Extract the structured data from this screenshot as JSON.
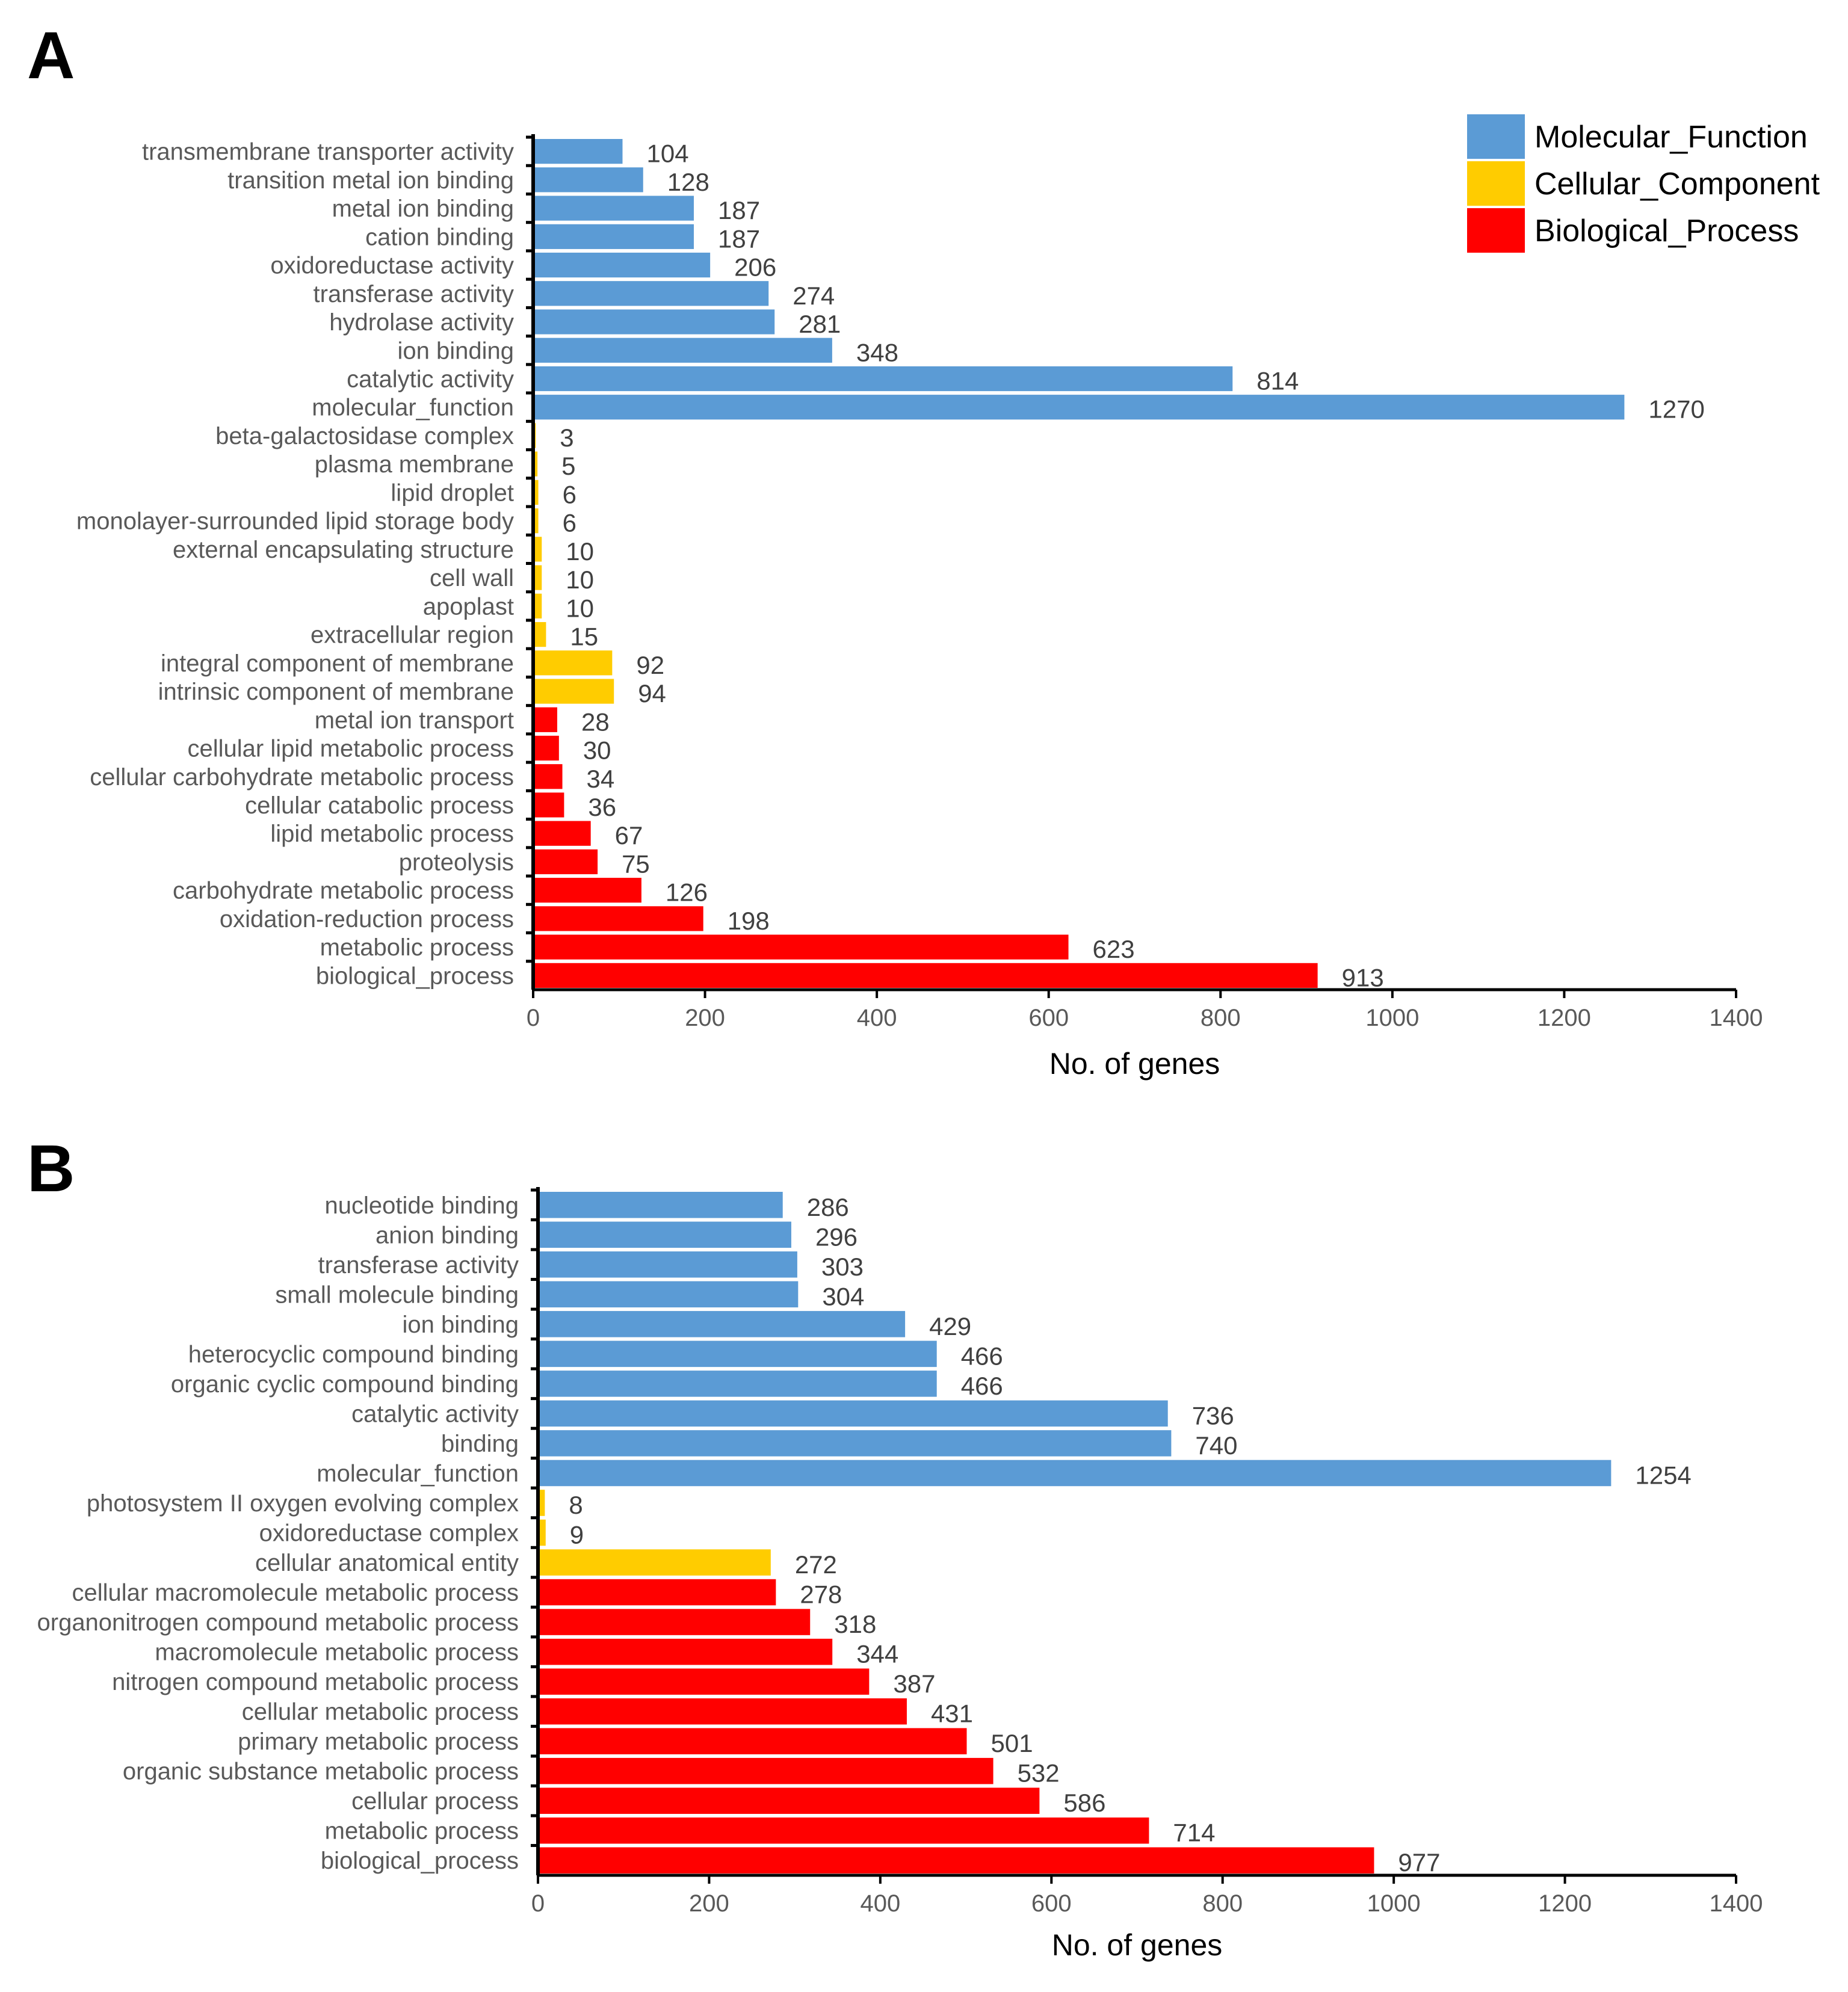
{
  "colors": {
    "Molecular_Function": "#5B9BD5",
    "Cellular_Component": "#FFCC00",
    "Biological_Process": "#FF0000"
  },
  "legend": {
    "position": "top-right",
    "entries": [
      "Molecular_Function",
      "Cellular_Component",
      "Biological_Process"
    ]
  },
  "chart_data": [
    {
      "panel": "A",
      "type": "bar",
      "orientation": "horizontal",
      "xlabel": "No. of genes",
      "xlim": [
        0,
        1400
      ],
      "xticks": [
        0,
        200,
        400,
        600,
        800,
        1000,
        1200,
        1400
      ],
      "categories": [
        "transmembrane transporter activity",
        "transition metal ion binding",
        "metal ion binding",
        "cation binding",
        "oxidoreductase activity",
        "transferase activity",
        "hydrolase activity",
        "ion binding",
        "catalytic activity",
        "molecular_function",
        "beta-galactosidase complex",
        "plasma membrane",
        "lipid droplet",
        "monolayer-surrounded lipid storage body",
        "external encapsulating structure",
        "cell wall",
        "apoplast",
        "extracellular region",
        "integral component of membrane",
        "intrinsic component of membrane",
        "metal ion transport",
        "cellular lipid metabolic process",
        "cellular carbohydrate metabolic process",
        "cellular catabolic process",
        "lipid metabolic process",
        "proteolysis",
        "carbohydrate metabolic process",
        "oxidation-reduction process",
        "metabolic process",
        "biological_process"
      ],
      "values": [
        104,
        128,
        187,
        187,
        206,
        274,
        281,
        348,
        814,
        1270,
        3,
        5,
        6,
        6,
        10,
        10,
        10,
        15,
        92,
        94,
        28,
        30,
        34,
        36,
        67,
        75,
        126,
        198,
        623,
        913
      ],
      "groups": [
        "Molecular_Function",
        "Molecular_Function",
        "Molecular_Function",
        "Molecular_Function",
        "Molecular_Function",
        "Molecular_Function",
        "Molecular_Function",
        "Molecular_Function",
        "Molecular_Function",
        "Molecular_Function",
        "Cellular_Component",
        "Cellular_Component",
        "Cellular_Component",
        "Cellular_Component",
        "Cellular_Component",
        "Cellular_Component",
        "Cellular_Component",
        "Cellular_Component",
        "Cellular_Component",
        "Cellular_Component",
        "Biological_Process",
        "Biological_Process",
        "Biological_Process",
        "Biological_Process",
        "Biological_Process",
        "Biological_Process",
        "Biological_Process",
        "Biological_Process",
        "Biological_Process",
        "Biological_Process"
      ]
    },
    {
      "panel": "B",
      "type": "bar",
      "orientation": "horizontal",
      "xlabel": "No. of genes",
      "xlim": [
        0,
        1400
      ],
      "xticks": [
        0,
        200,
        400,
        600,
        800,
        1000,
        1200,
        1400
      ],
      "categories": [
        "nucleotide binding",
        "anion binding",
        "transferase activity",
        "small molecule binding",
        "ion binding",
        "heterocyclic compound binding",
        "organic cyclic compound binding",
        "catalytic activity",
        "binding",
        "molecular_function",
        "photosystem II oxygen evolving complex",
        "oxidoreductase complex",
        "cellular anatomical entity",
        "cellular macromolecule metabolic process",
        "organonitrogen compound metabolic process",
        "macromolecule metabolic process",
        "nitrogen compound metabolic process",
        "cellular metabolic process",
        "primary metabolic process",
        "organic substance metabolic process",
        "cellular process",
        "metabolic process",
        "biological_process"
      ],
      "values": [
        286,
        296,
        303,
        304,
        429,
        466,
        466,
        736,
        740,
        1254,
        8,
        9,
        272,
        278,
        318,
        344,
        387,
        431,
        501,
        532,
        586,
        714,
        977
      ],
      "groups": [
        "Molecular_Function",
        "Molecular_Function",
        "Molecular_Function",
        "Molecular_Function",
        "Molecular_Function",
        "Molecular_Function",
        "Molecular_Function",
        "Molecular_Function",
        "Molecular_Function",
        "Molecular_Function",
        "Cellular_Component",
        "Cellular_Component",
        "Cellular_Component",
        "Biological_Process",
        "Biological_Process",
        "Biological_Process",
        "Biological_Process",
        "Biological_Process",
        "Biological_Process",
        "Biological_Process",
        "Biological_Process",
        "Biological_Process",
        "Biological_Process"
      ]
    }
  ]
}
